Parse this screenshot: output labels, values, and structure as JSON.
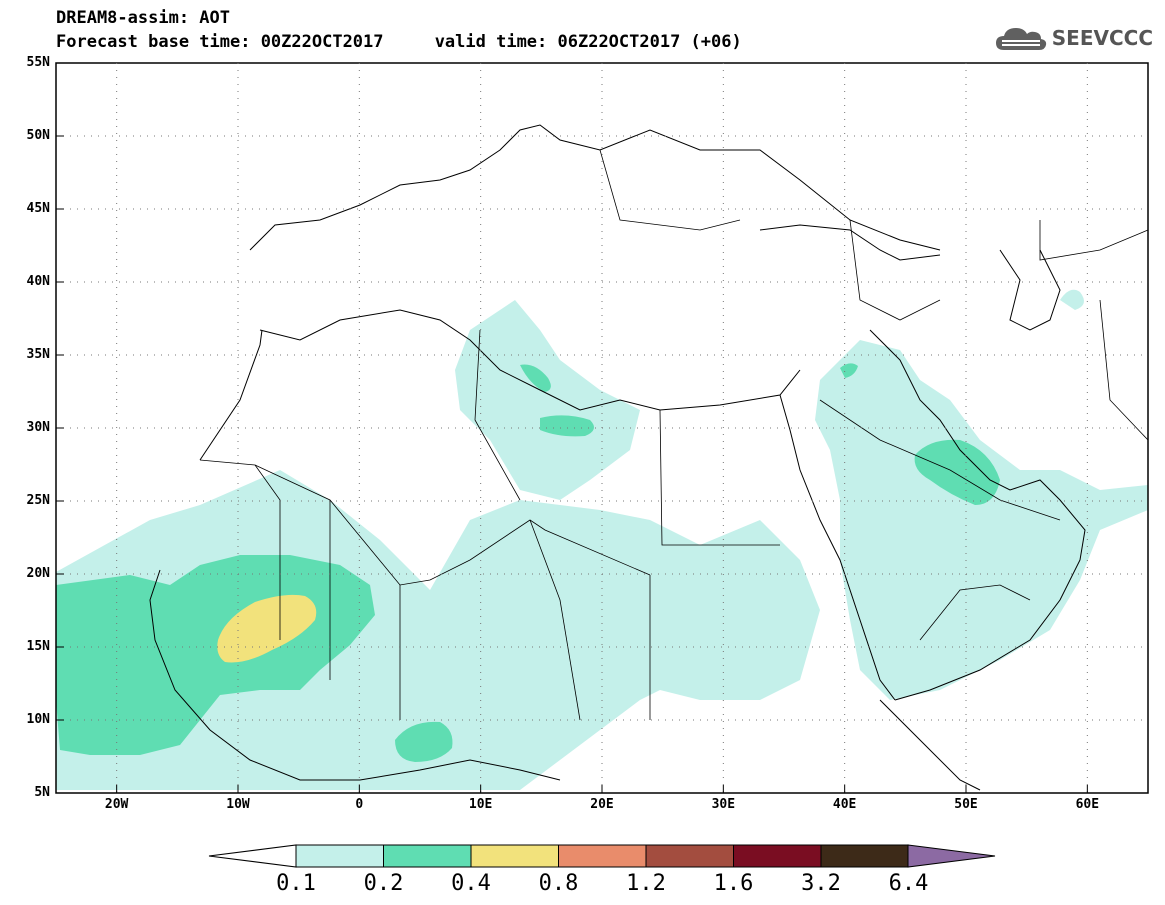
{
  "header": {
    "title_line1": "DREAM8-assim: AOT",
    "title_line2": "Forecast base time: 00Z22OCT2017     valid time: 06Z22OCT2017 (+06)",
    "logo_text": "SEEVCCC"
  },
  "map": {
    "lat_labels": [
      "55N",
      "50N",
      "45N",
      "40N",
      "35N",
      "30N",
      "25N",
      "20N",
      "15N",
      "10N",
      "5N"
    ],
    "lon_labels": [
      "20W",
      "10W",
      "0",
      "10E",
      "20E",
      "30E",
      "40E",
      "50E",
      "60E"
    ],
    "lat_range": [
      5,
      55
    ],
    "lon_range": [
      -25,
      65
    ]
  },
  "colorbar": {
    "labels": [
      "0.1",
      "0.2",
      "0.4",
      "0.8",
      "1.2",
      "1.6",
      "3.2",
      "6.4"
    ],
    "colors": [
      "#c4f0ea",
      "#5fddb2",
      "#f2e27c",
      "#e98c6b",
      "#a34d3f",
      "#7a0d22",
      "#3d2a18",
      "#8c6aa3"
    ]
  }
}
